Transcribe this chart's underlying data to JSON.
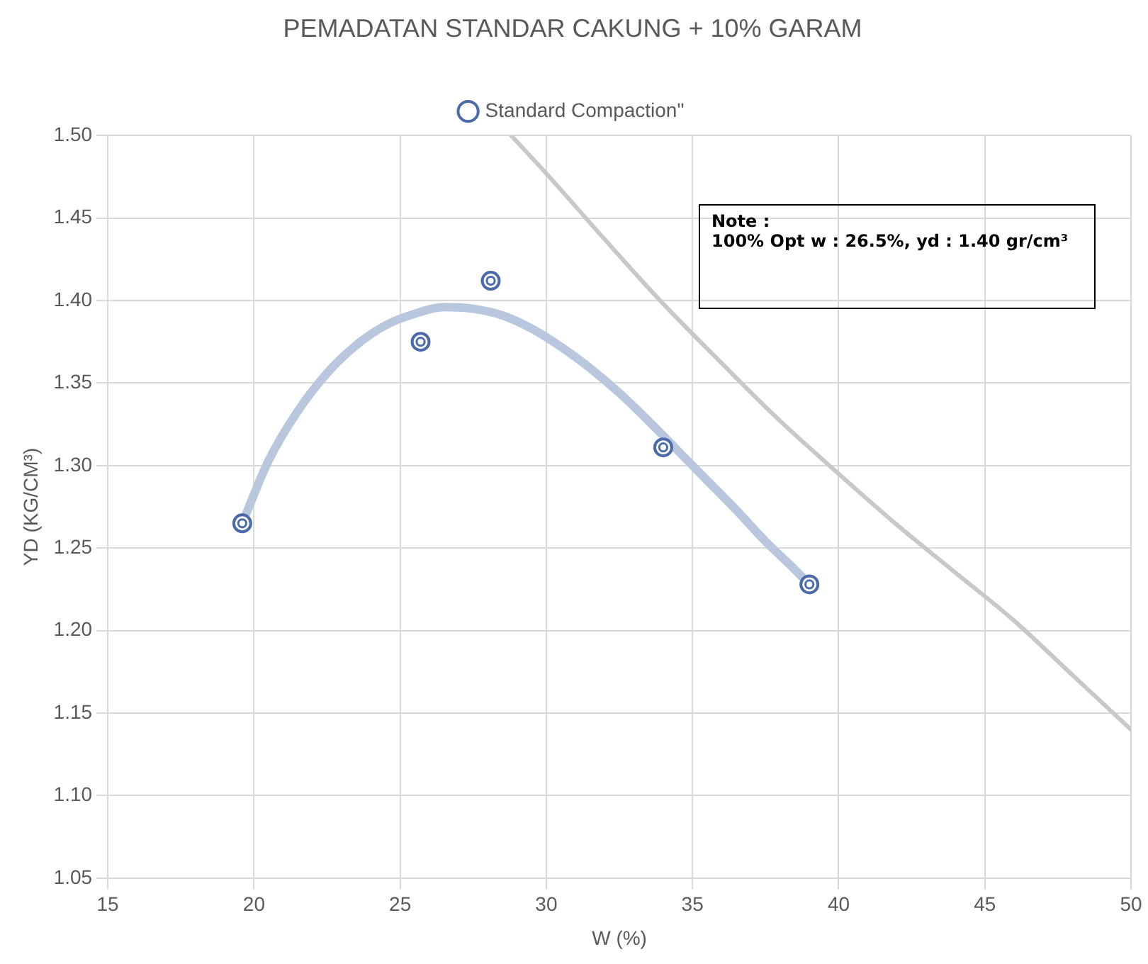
{
  "chart_data": {
    "type": "scatter",
    "title": "PEMADATAN STANDAR CAKUNG + 10% GARAM",
    "xlabel": "W (%)",
    "ylabel": "YD (KG/CM³)",
    "annotations": [
      "Note :\n100% Opt w : 26.5%, yd : 1.40 gr/cm³"
    ],
    "xlim": [
      15,
      50
    ],
    "xticks": [
      15,
      20,
      25,
      30,
      35,
      40,
      45,
      50
    ],
    "ylim": [
      1.05,
      1.5
    ],
    "yticks": [
      1.05,
      {
        "value": 1.1,
        "label": "1.10"
      },
      1.15,
      {
        "value": 1.2,
        "label": "1.20"
      },
      1.25,
      {
        "value": 1.3,
        "label": "1.30"
      },
      1.35,
      {
        "value": 1.4,
        "label": "1.40"
      },
      1.45,
      {
        "value": 1.5,
        "label": "1.50"
      }
    ],
    "grid": true,
    "legend": "top",
    "series": [
      {
        "name": "Standard Compaction\"",
        "marker": "circle",
        "color": "#4a6aaa",
        "x": [
          19.6,
          25.7,
          28.1,
          34.0,
          39.0
        ],
        "values": [
          1.265,
          1.375,
          1.412,
          1.311,
          1.228
        ]
      },
      {
        "type": "line",
        "marker": "none",
        "color": "#b8c6de",
        "x": [
          19.6,
          20.5,
          21.5,
          22.5,
          23.5,
          24.5,
          25.5,
          26.5,
          27.5,
          28.5,
          29.5,
          30.5,
          31.5,
          32.5,
          33.5,
          34.5,
          35.5,
          36.5,
          37.5,
          38.5,
          39.0
        ],
        "values": [
          1.265,
          1.303,
          1.333,
          1.356,
          1.373,
          1.385,
          1.392,
          1.396,
          1.395,
          1.391,
          1.383,
          1.372,
          1.359,
          1.344,
          1.327,
          1.309,
          1.291,
          1.273,
          1.254,
          1.237,
          1.228
        ]
      },
      {
        "type": "line",
        "marker": "none",
        "color": "#c8c8c8",
        "x": [
          28.8,
          30,
          32,
          34,
          36,
          38,
          40,
          42,
          44,
          46,
          48,
          50
        ],
        "values": [
          1.5,
          1.477,
          1.437,
          1.398,
          1.362,
          1.327,
          1.295,
          1.264,
          1.235,
          1.206,
          1.173,
          1.14
        ]
      }
    ]
  }
}
